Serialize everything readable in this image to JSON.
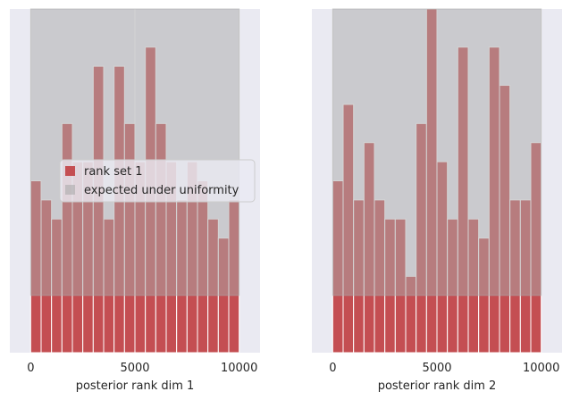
{
  "chart_data": [
    {
      "type": "histogram",
      "xlabel": "posterior rank dim 1",
      "ylabel": "",
      "xlim": [
        -1000,
        11000
      ],
      "ylim": [
        0,
        18
      ],
      "xticks": [
        0,
        5000,
        10000
      ],
      "xtick_labels": [
        "0",
        "5000",
        "10000"
      ],
      "bin_width": 500,
      "bin_starts": [
        0,
        500,
        1000,
        1500,
        2000,
        2500,
        3000,
        3500,
        4000,
        4500,
        5000,
        5500,
        6000,
        6500,
        7000,
        7500,
        8000,
        8500,
        9000,
        9500
      ],
      "series": [
        {
          "name": "rank set 1",
          "color": "#c44e52",
          "values": [
            9,
            8,
            7,
            12,
            10,
            10,
            15,
            7,
            15,
            12,
            10,
            16,
            12,
            10,
            8,
            10,
            9,
            7,
            6,
            8
          ]
        }
      ],
      "uniform_band": {
        "name": "expected under uniformity",
        "color": "#aaaaaa",
        "low": 3,
        "high": 18,
        "x": [
          0,
          10000
        ]
      },
      "legend": {
        "entries": [
          "rank set 1",
          "expected under uniformity"
        ],
        "location": "center"
      }
    },
    {
      "type": "histogram",
      "xlabel": "posterior rank dim 2",
      "ylabel": "",
      "xlim": [
        -1000,
        11000
      ],
      "ylim": [
        0,
        18
      ],
      "xticks": [
        0,
        5000,
        10000
      ],
      "xtick_labels": [
        "0",
        "5000",
        "10000"
      ],
      "bin_width": 500,
      "bin_starts": [
        0,
        500,
        1000,
        1500,
        2000,
        2500,
        3000,
        3500,
        4000,
        4500,
        5000,
        5500,
        6000,
        6500,
        7000,
        7500,
        8000,
        8500,
        9000,
        9500
      ],
      "series": [
        {
          "name": "rank set 1",
          "color": "#c44e52",
          "values": [
            9,
            13,
            8,
            11,
            8,
            7,
            7,
            4,
            12,
            18,
            10,
            7,
            16,
            7,
            6,
            16,
            14,
            8,
            8,
            11
          ]
        }
      ],
      "uniform_band": {
        "name": "expected under uniformity",
        "color": "#aaaaaa",
        "low": 3,
        "high": 18,
        "x": [
          0,
          10000
        ]
      }
    }
  ]
}
